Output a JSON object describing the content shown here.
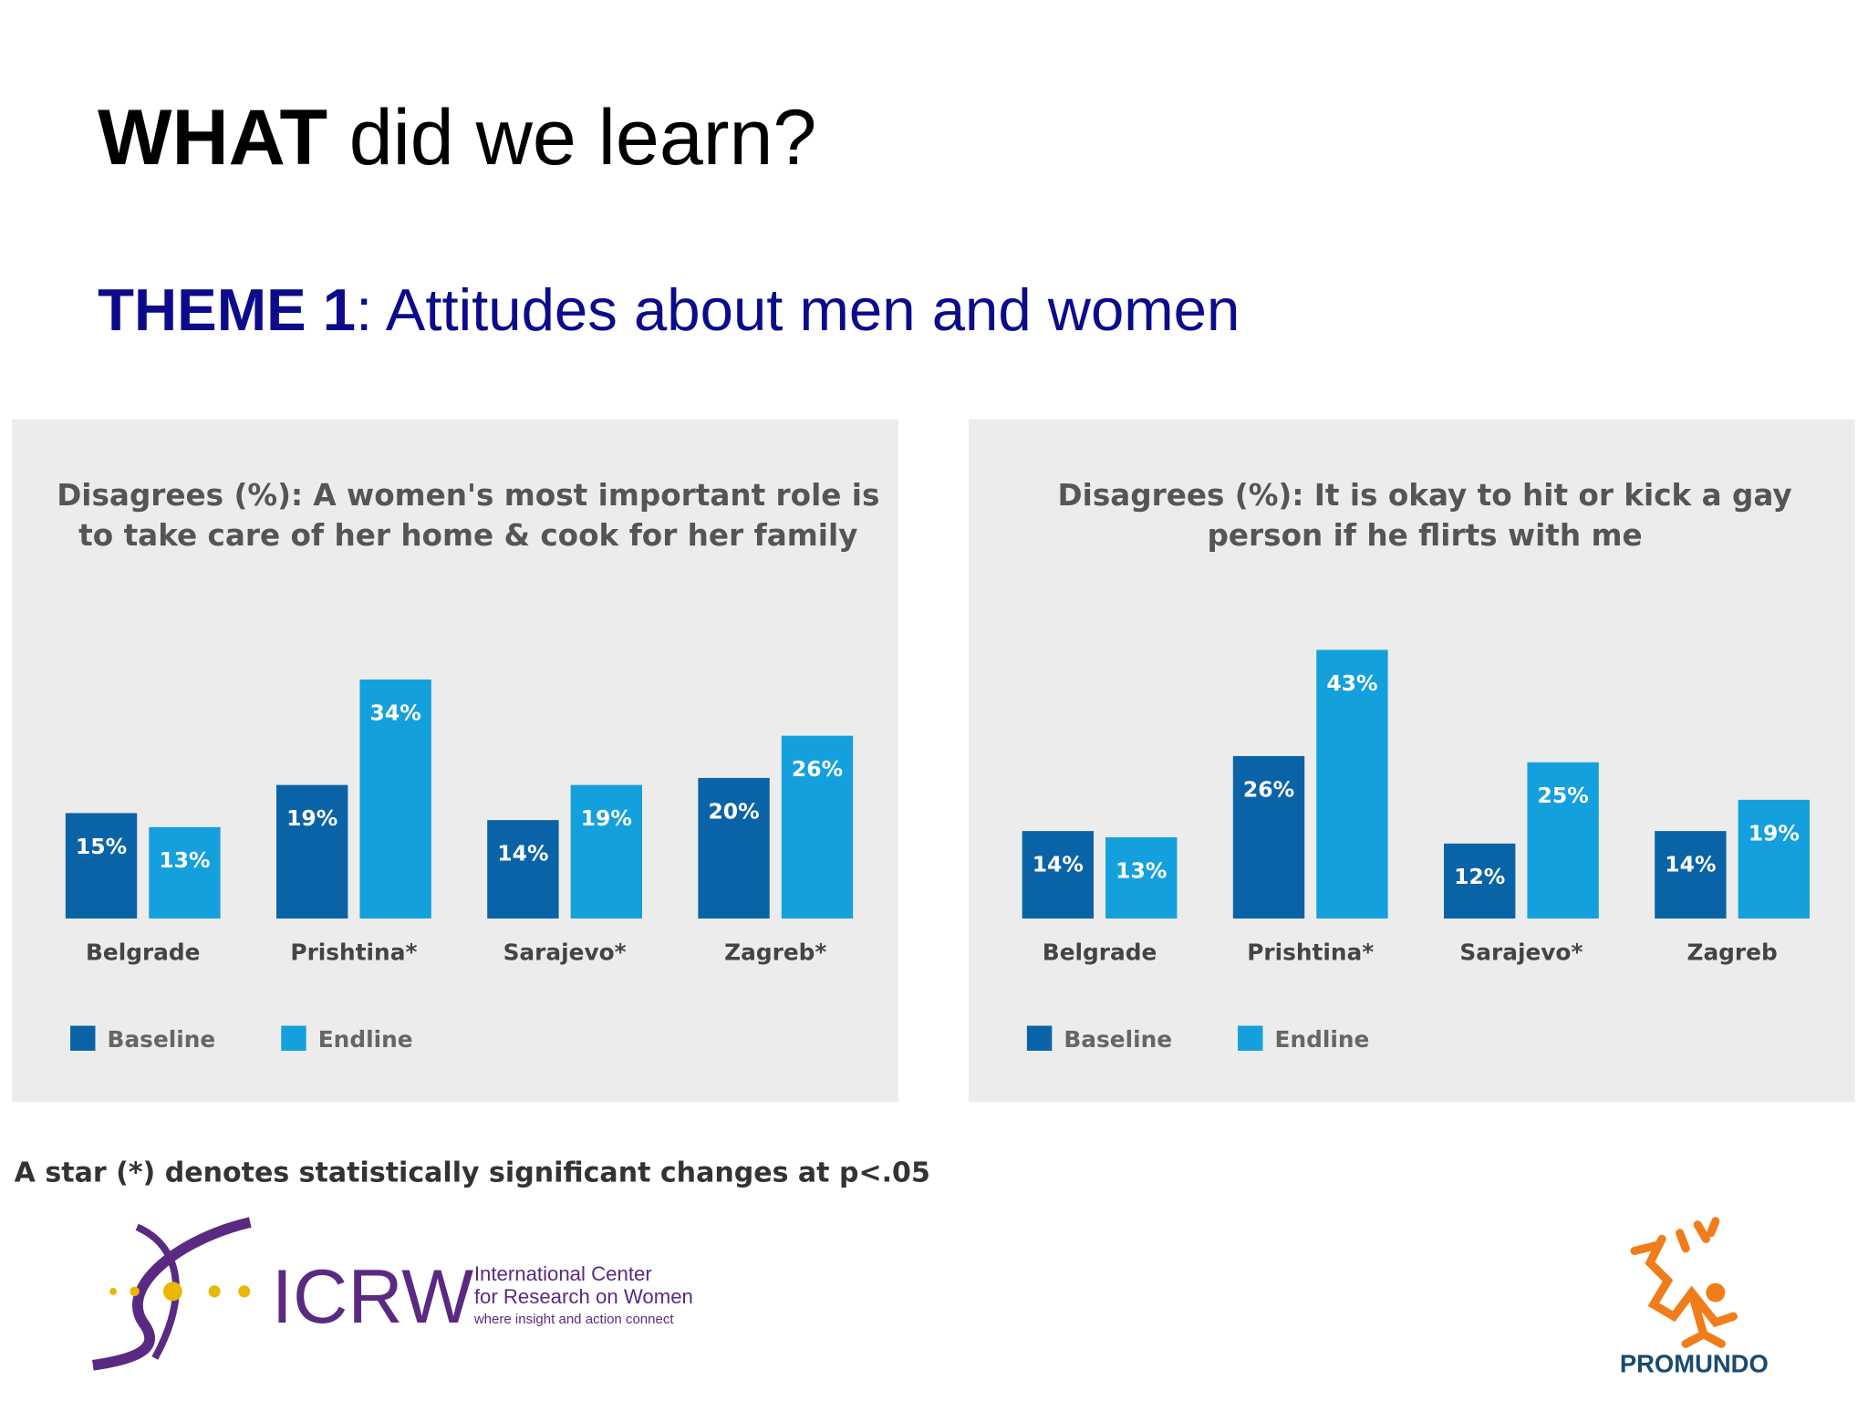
{
  "title_bold": "WHAT",
  "title_rest": "did we learn?",
  "subtitle_bold": "THEME 1",
  "subtitle_rest": ": Attitudes about men and women",
  "footnote": "A star (*) denotes statistically significant changes at p<.05",
  "logo_left": {
    "name": "ICRW",
    "line1": "International Center",
    "line2": "for Research on Women",
    "tagline": "where insight and action connect"
  },
  "logo_right": {
    "name": "PROMUNDO"
  },
  "chart_data": [
    {
      "type": "bar",
      "title": [
        "Disagrees (%): A women's most important role is",
        "to take care of her home & cook for her family"
      ],
      "categories": [
        "Belgrade",
        "Prishtina*",
        "Sarajevo*",
        "Zagreb*"
      ],
      "series": [
        {
          "name": "Baseline",
          "color": "#0b63a7",
          "values": [
            15,
            19,
            14,
            20
          ],
          "value_labels": [
            "15%",
            "19%",
            "14%",
            "20%"
          ]
        },
        {
          "name": "Endline",
          "color": "#14a0dc",
          "values": [
            13,
            34,
            19,
            26
          ],
          "value_labels": [
            "13%",
            "34%",
            "19%",
            "26%"
          ]
        }
      ],
      "ylim": [
        0,
        40
      ]
    },
    {
      "type": "bar",
      "title": [
        "Disagrees (%): It is okay to hit or kick a gay",
        "person if he flirts with me"
      ],
      "categories": [
        "Belgrade",
        "Prishtina*",
        "Sarajevo*",
        "Zagreb"
      ],
      "series": [
        {
          "name": "Baseline",
          "color": "#0b63a7",
          "values": [
            14,
            26,
            12,
            14
          ],
          "value_labels": [
            "14%",
            "26%",
            "12%",
            "14%"
          ]
        },
        {
          "name": "Endline",
          "color": "#14a0dc",
          "values": [
            13,
            43,
            25,
            19
          ],
          "value_labels": [
            "13%",
            "43%",
            "25%",
            "19%"
          ]
        }
      ],
      "ylim": [
        0,
        45
      ]
    }
  ]
}
